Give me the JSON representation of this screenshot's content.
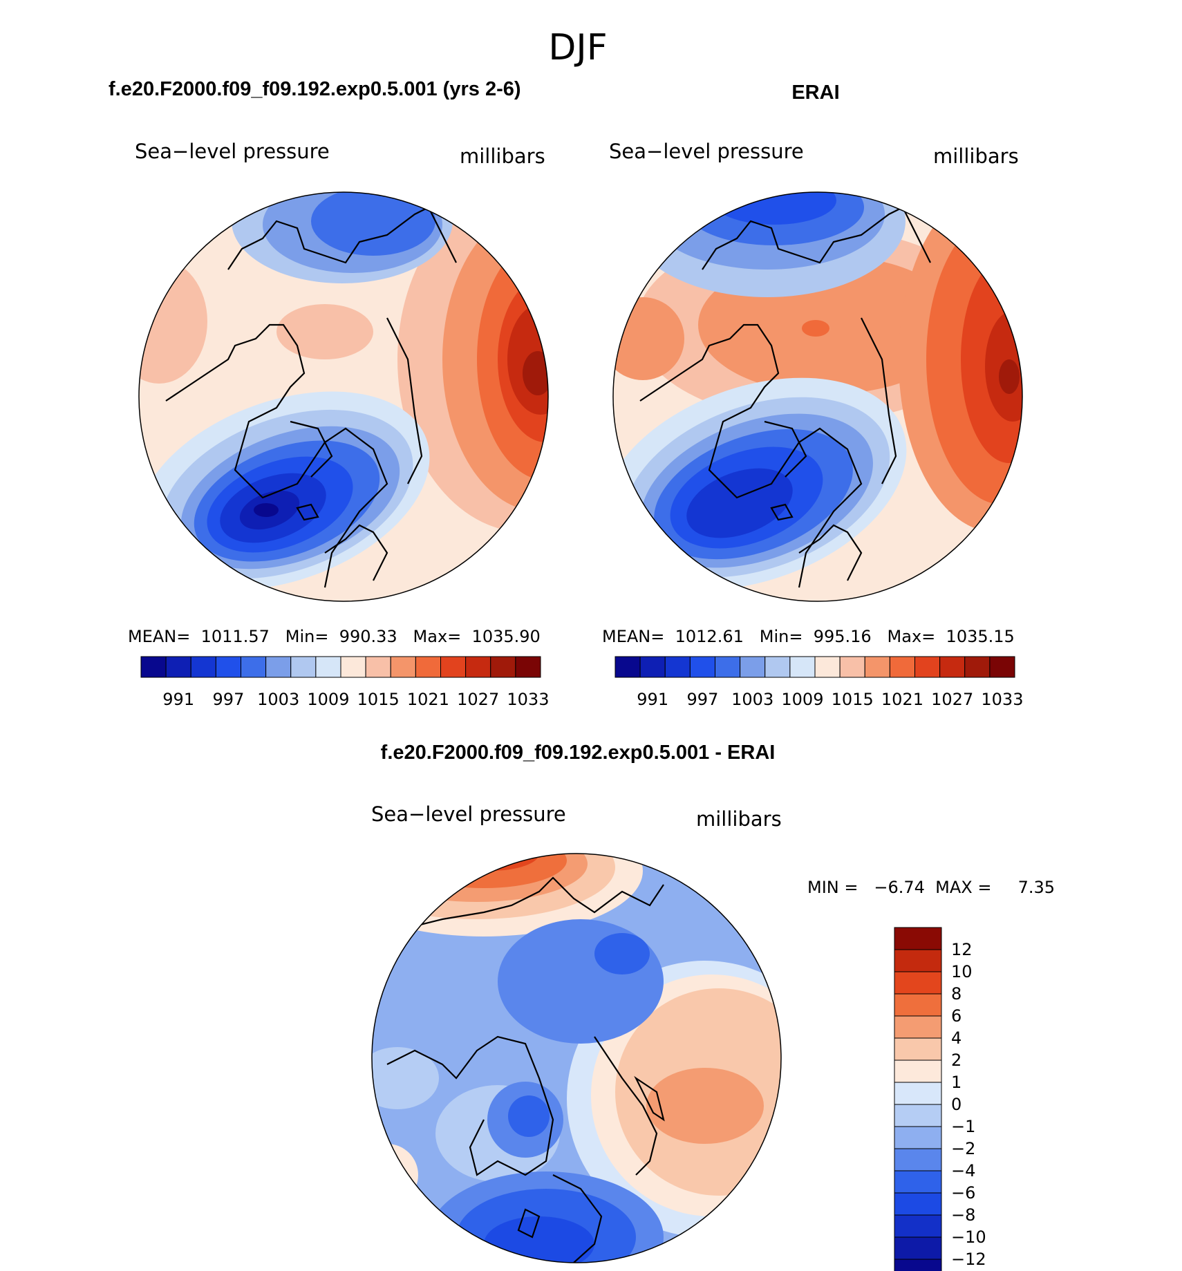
{
  "page_title": "DJF",
  "panels": [
    {
      "id": "model",
      "heading": "f.e20.F2000.f09_f09.192.exp0.5.001 (yrs 2-6)",
      "field_label": "Sea−level pressure",
      "units": "millibars",
      "stats_text": "MEAN=  1011.57   Min=  990.33   Max=  1035.90",
      "colorbar_labels": [
        "991",
        "997",
        "1003",
        "1009",
        "1015",
        "1021",
        "1027",
        "1033"
      ]
    },
    {
      "id": "obs",
      "heading": "ERAI",
      "field_label": "Sea−level pressure",
      "units": "millibars",
      "stats_text": "MEAN=  1012.61   Min=  995.16   Max=  1035.15",
      "colorbar_labels": [
        "991",
        "997",
        "1003",
        "1009",
        "1015",
        "1021",
        "1027",
        "1033"
      ]
    }
  ],
  "diff_panel": {
    "heading": "f.e20.F2000.f09_f09.192.exp0.5.001 - ERAI",
    "field_label": "Sea−level pressure",
    "units": "millibars",
    "minmax_text": "MIN =   −6.74  MAX =     7.35",
    "colorbar_labels": [
      "12",
      "10",
      "8",
      "6",
      "4",
      "2",
      "1",
      "0",
      "−1",
      "−2",
      "−4",
      "−6",
      "−8",
      "−10",
      "−12"
    ]
  },
  "palettes": {
    "abs": [
      "#08088e",
      "#0e1fb4",
      "#1436d2",
      "#2050ea",
      "#3d6ee9",
      "#7b9ee9",
      "#b0c8f0",
      "#d6e6f8",
      "#fce8da",
      "#f8c0a8",
      "#f4956a",
      "#f06a3a",
      "#e2431e",
      "#c62a10",
      "#a01a0a",
      "#7a0505"
    ],
    "diff": [
      "#08088e",
      "#0d1aa8",
      "#1330c8",
      "#1c4ae4",
      "#2f62ea",
      "#5a86ec",
      "#8eaff0",
      "#b5cdf4",
      "#d8e7fa",
      "#fde9db",
      "#f9c8ab",
      "#f49c72",
      "#ef6f3c",
      "#e3461d",
      "#c42a0e",
      "#8a0a04"
    ]
  },
  "chart_data": [
    {
      "type": "heatmap",
      "title": "f.e20.F2000.f09_f09.192.exp0.5.001 (yrs 2-6)",
      "variable": "Sea-level pressure",
      "units": "millibars",
      "projection": "north polar stereographic",
      "contour_levels": [
        991,
        994,
        997,
        1000,
        1003,
        1006,
        1009,
        1012,
        1015,
        1018,
        1021,
        1024,
        1027,
        1030,
        1033
      ],
      "mean": 1011.57,
      "min": 990.33,
      "max": 1035.9
    },
    {
      "type": "heatmap",
      "title": "ERAI",
      "variable": "Sea-level pressure",
      "units": "millibars",
      "projection": "north polar stereographic",
      "contour_levels": [
        991,
        994,
        997,
        1000,
        1003,
        1006,
        1009,
        1012,
        1015,
        1018,
        1021,
        1024,
        1027,
        1030,
        1033
      ],
      "mean": 1012.61,
      "min": 995.16,
      "max": 1035.15
    },
    {
      "type": "heatmap",
      "title": "f.e20.F2000.f09_f09.192.exp0.5.001 - ERAI",
      "variable": "Sea-level pressure difference",
      "units": "millibars",
      "projection": "north polar stereographic",
      "contour_levels": [
        -12,
        -10,
        -8,
        -6,
        -4,
        -2,
        -1,
        0,
        1,
        2,
        4,
        6,
        8,
        10,
        12
      ],
      "min": -6.74,
      "max": 7.35
    }
  ]
}
